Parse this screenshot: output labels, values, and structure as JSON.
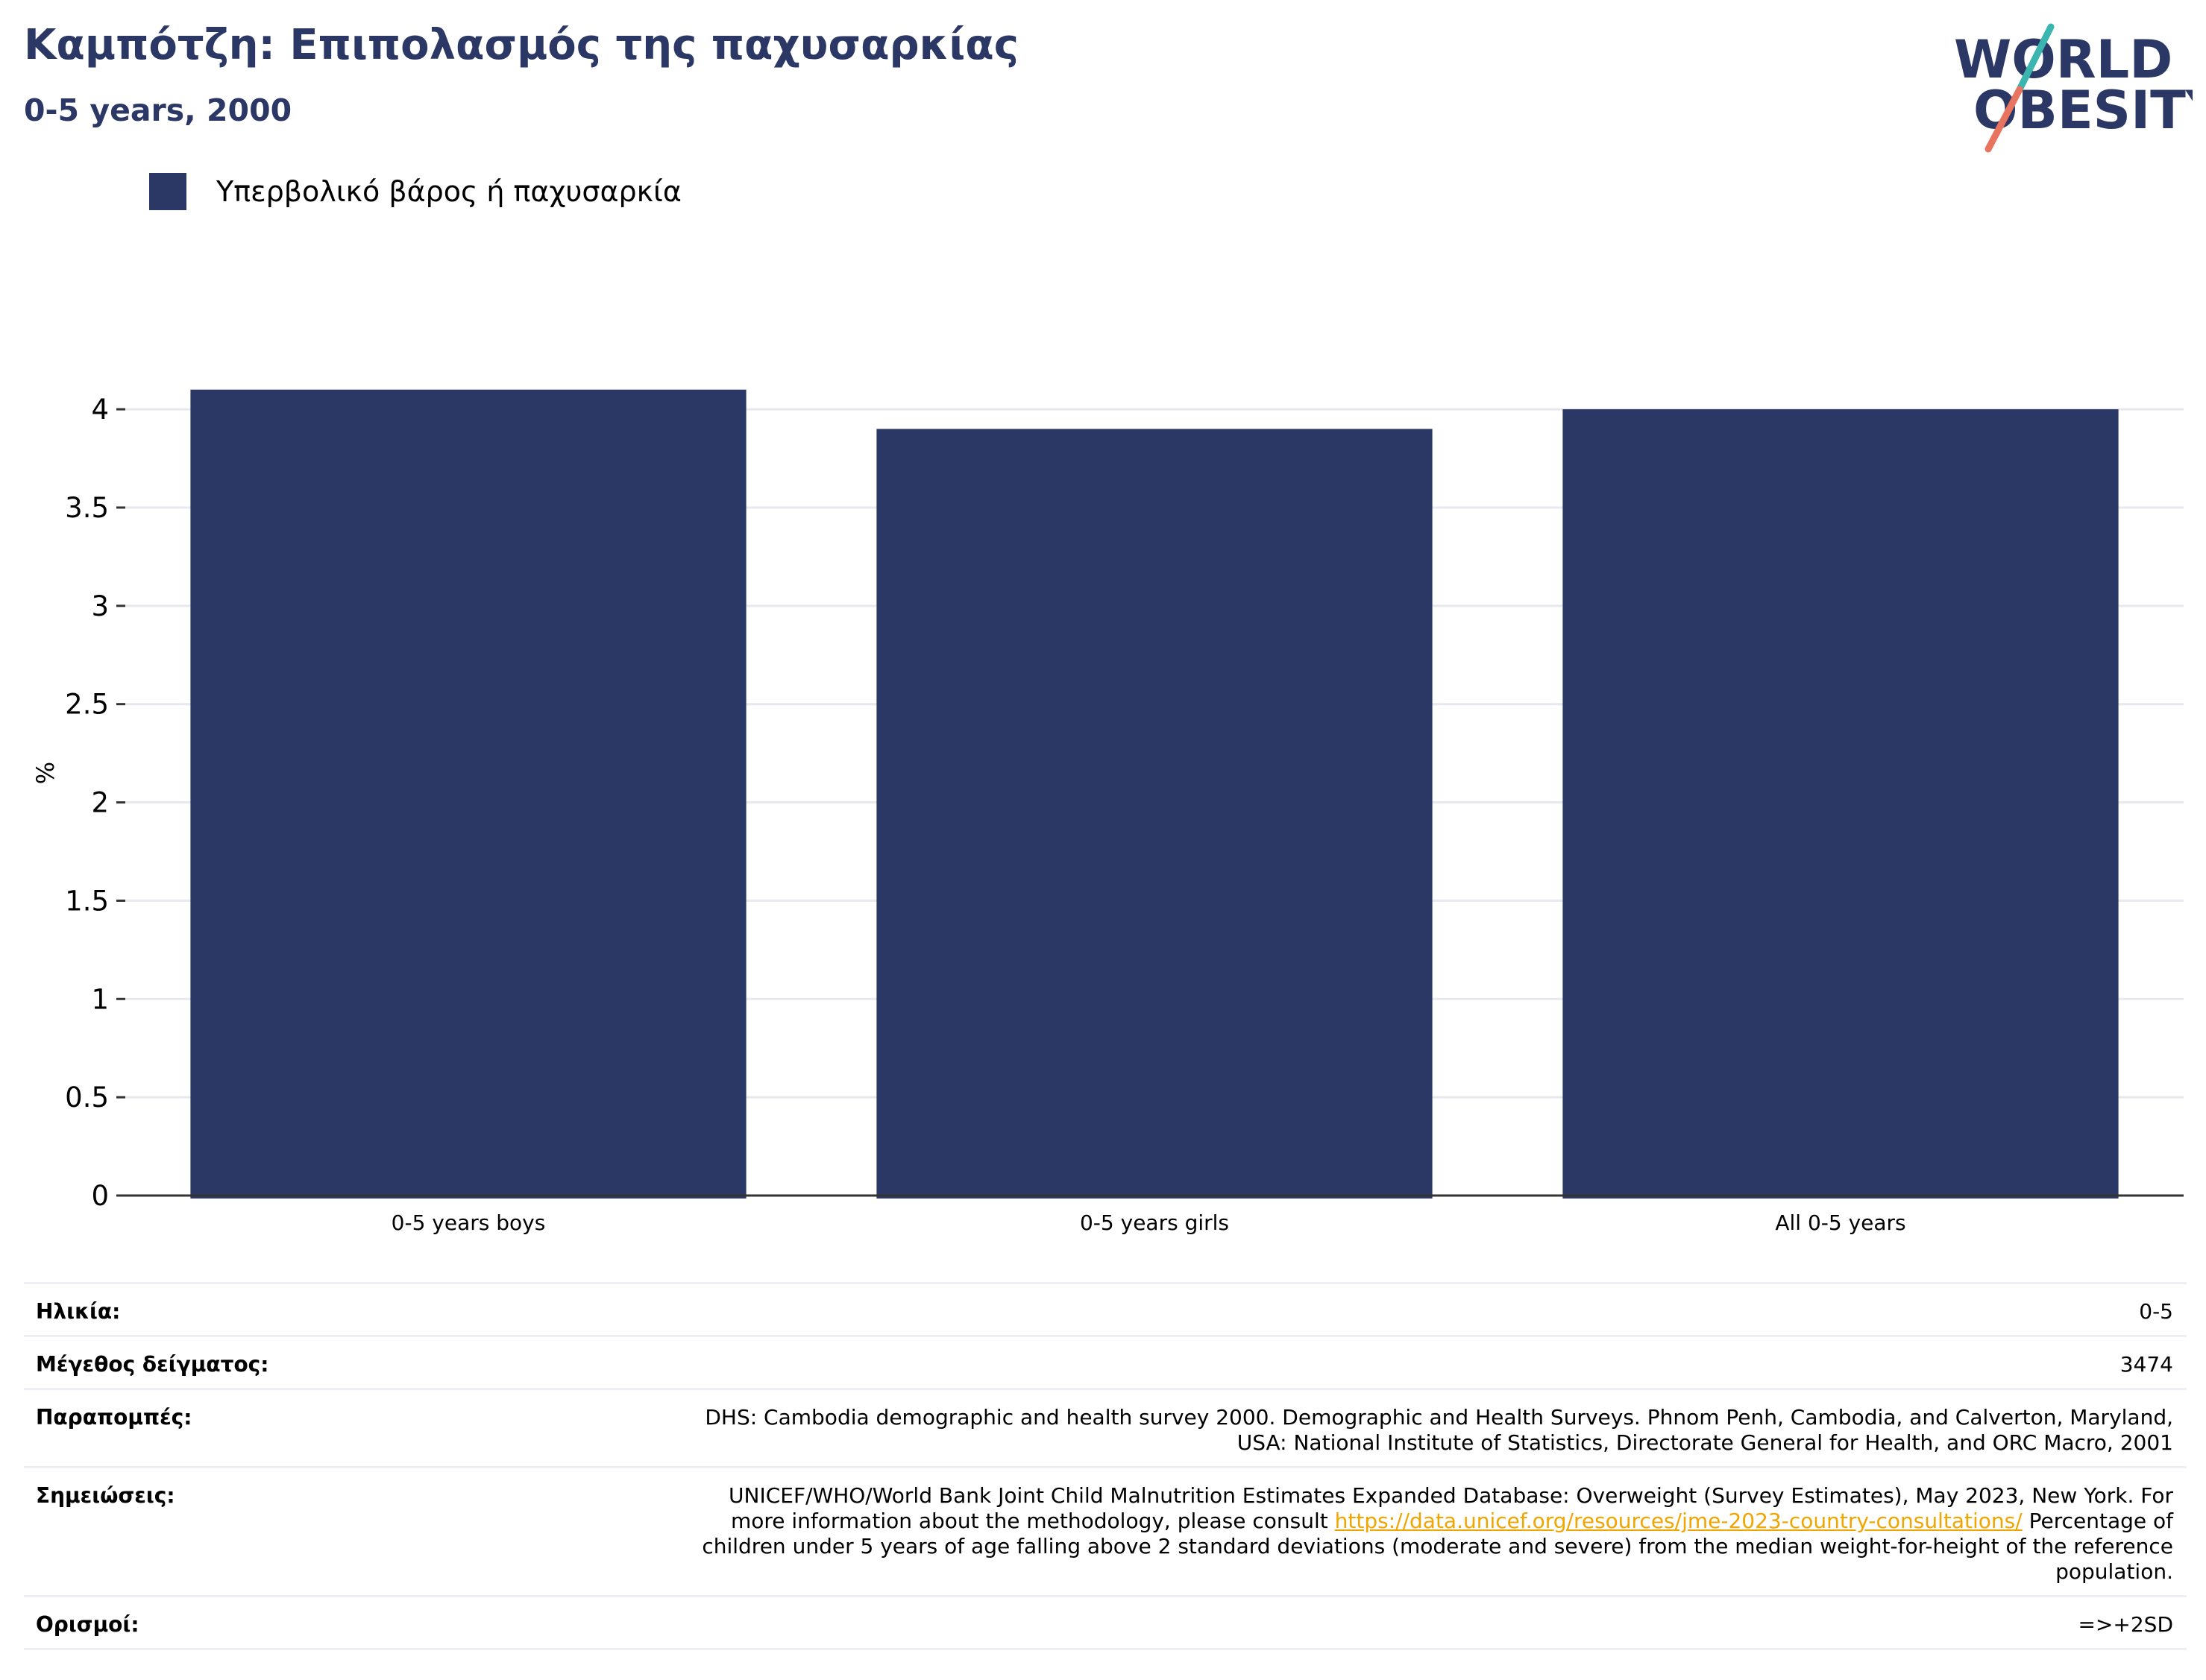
{
  "header": {
    "title": "Καμπότζη: Επιπολασμός της παχυσαρκίας",
    "subtitle": "0-5 years, 2000"
  },
  "logo": {
    "line1": "WORLD",
    "line2": "OBESITY",
    "color": "#2b3765",
    "slash_top_color": "#3ab5b0",
    "slash_bottom_color": "#e8735f"
  },
  "chart_data": {
    "type": "bar",
    "categories": [
      "0-5 years boys",
      "0-5 years girls",
      "All 0-5 years"
    ],
    "series": [
      {
        "name": "Υπερβολικό βάρος ή παχυσαρκία",
        "values": [
          4.1,
          3.9,
          4.0
        ],
        "color": "#2b3765"
      }
    ],
    "ylabel": "%",
    "ylim": [
      0,
      4.3
    ],
    "yticks": [
      "0",
      "0.5",
      "1",
      "1.5",
      "2",
      "2.5",
      "3",
      "3.5",
      "4"
    ],
    "grid": true,
    "legend_position": "top-left"
  },
  "info": {
    "age_label": "Ηλικία:",
    "age_value": "0-5",
    "sample_label": "Μέγεθος δείγματος:",
    "sample_value": "3474",
    "refs_label": "Παραπομπές:",
    "refs_line1": "DHS: Cambodia demographic and health survey 2000. Demographic and Health Surveys. Phnom Penh, Cambodia, and Calverton, Maryland,",
    "refs_line2": "USA: National Institute of Statistics, Directorate General for Health, and ORC Macro, 2001",
    "notes_label": "Σημειώσεις:",
    "notes_line1": "UNICEF/WHO/World Bank Joint Child Malnutrition Estimates Expanded Database: Overweight (Survey Estimates), May 2023, New York. For",
    "notes_line2_pre": "more information about the methodology, please consult ",
    "notes_link": "https://data.unicef.org/resources/jme-2023-country-consultations/",
    "notes_line2_post": " Percentage of",
    "notes_line3": "children under 5 years of age falling above 2 standard deviations (moderate and severe) from the median weight-for-height of the reference",
    "notes_line4": "population.",
    "defs_label": "Ορισμοί:",
    "defs_value": "=>+2SD"
  }
}
